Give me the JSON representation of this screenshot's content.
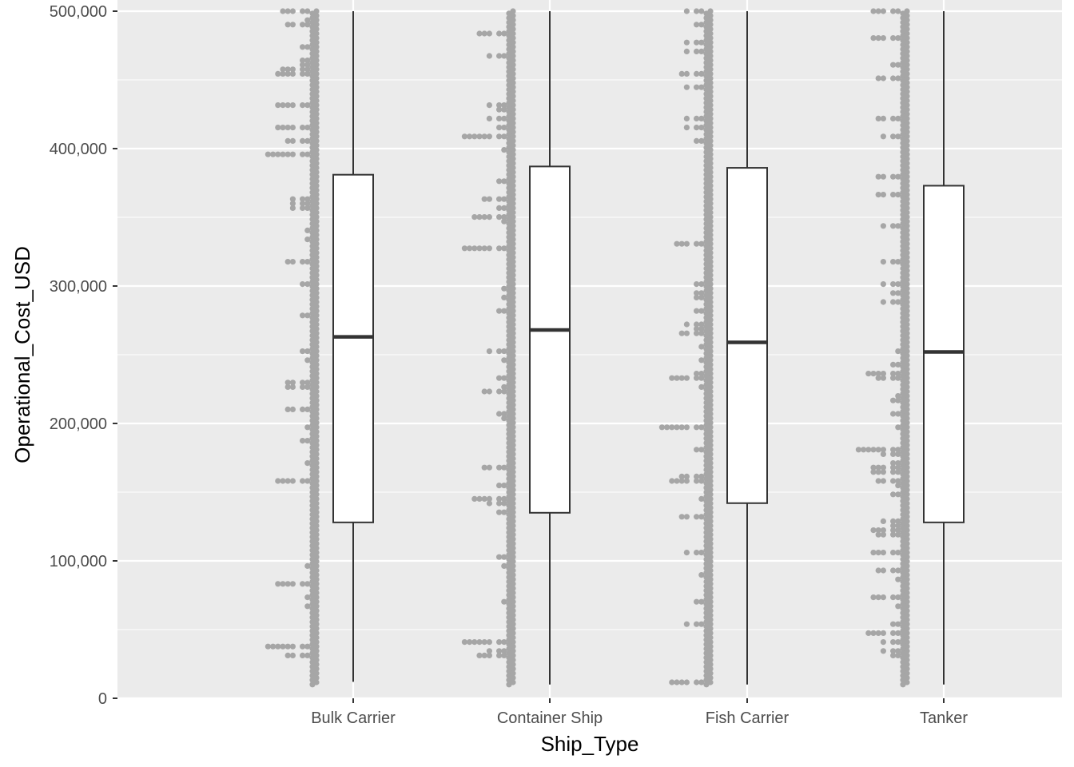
{
  "chart_data": {
    "type": "boxplot",
    "xlabel": "Ship_Type",
    "ylabel": "Operational_Cost_USD",
    "ylim": [
      0,
      500000
    ],
    "y_ticks": [
      0,
      100000,
      200000,
      300000,
      400000,
      500000
    ],
    "y_tick_labels": [
      "0",
      "100,000",
      "200,000",
      "300,000",
      "400,000",
      "500,000"
    ],
    "categories": [
      "Bulk Carrier",
      "Container Ship",
      "Fish Carrier",
      "Tanker"
    ],
    "boxes": [
      {
        "category": "Bulk Carrier",
        "min": 12000,
        "q1": 128000,
        "median": 263000,
        "q3": 381000,
        "max": 500000
      },
      {
        "category": "Container Ship",
        "min": 10000,
        "q1": 135000,
        "median": 268000,
        "q3": 387000,
        "max": 500000
      },
      {
        "category": "Fish Carrier",
        "min": 10000,
        "q1": 142000,
        "median": 259000,
        "q3": 386000,
        "max": 500000
      },
      {
        "category": "Tanker",
        "min": 10000,
        "q1": 128000,
        "median": 252000,
        "q3": 373000,
        "max": 500000
      }
    ],
    "dot_range": [
      10000,
      500000
    ],
    "colors": {
      "panel": "#ebebeb",
      "grid": "#ffffff",
      "dots": "#a6a6a6",
      "box_fill": "#ffffff",
      "box_line": "#333333"
    },
    "grid": true,
    "legend": "none"
  }
}
